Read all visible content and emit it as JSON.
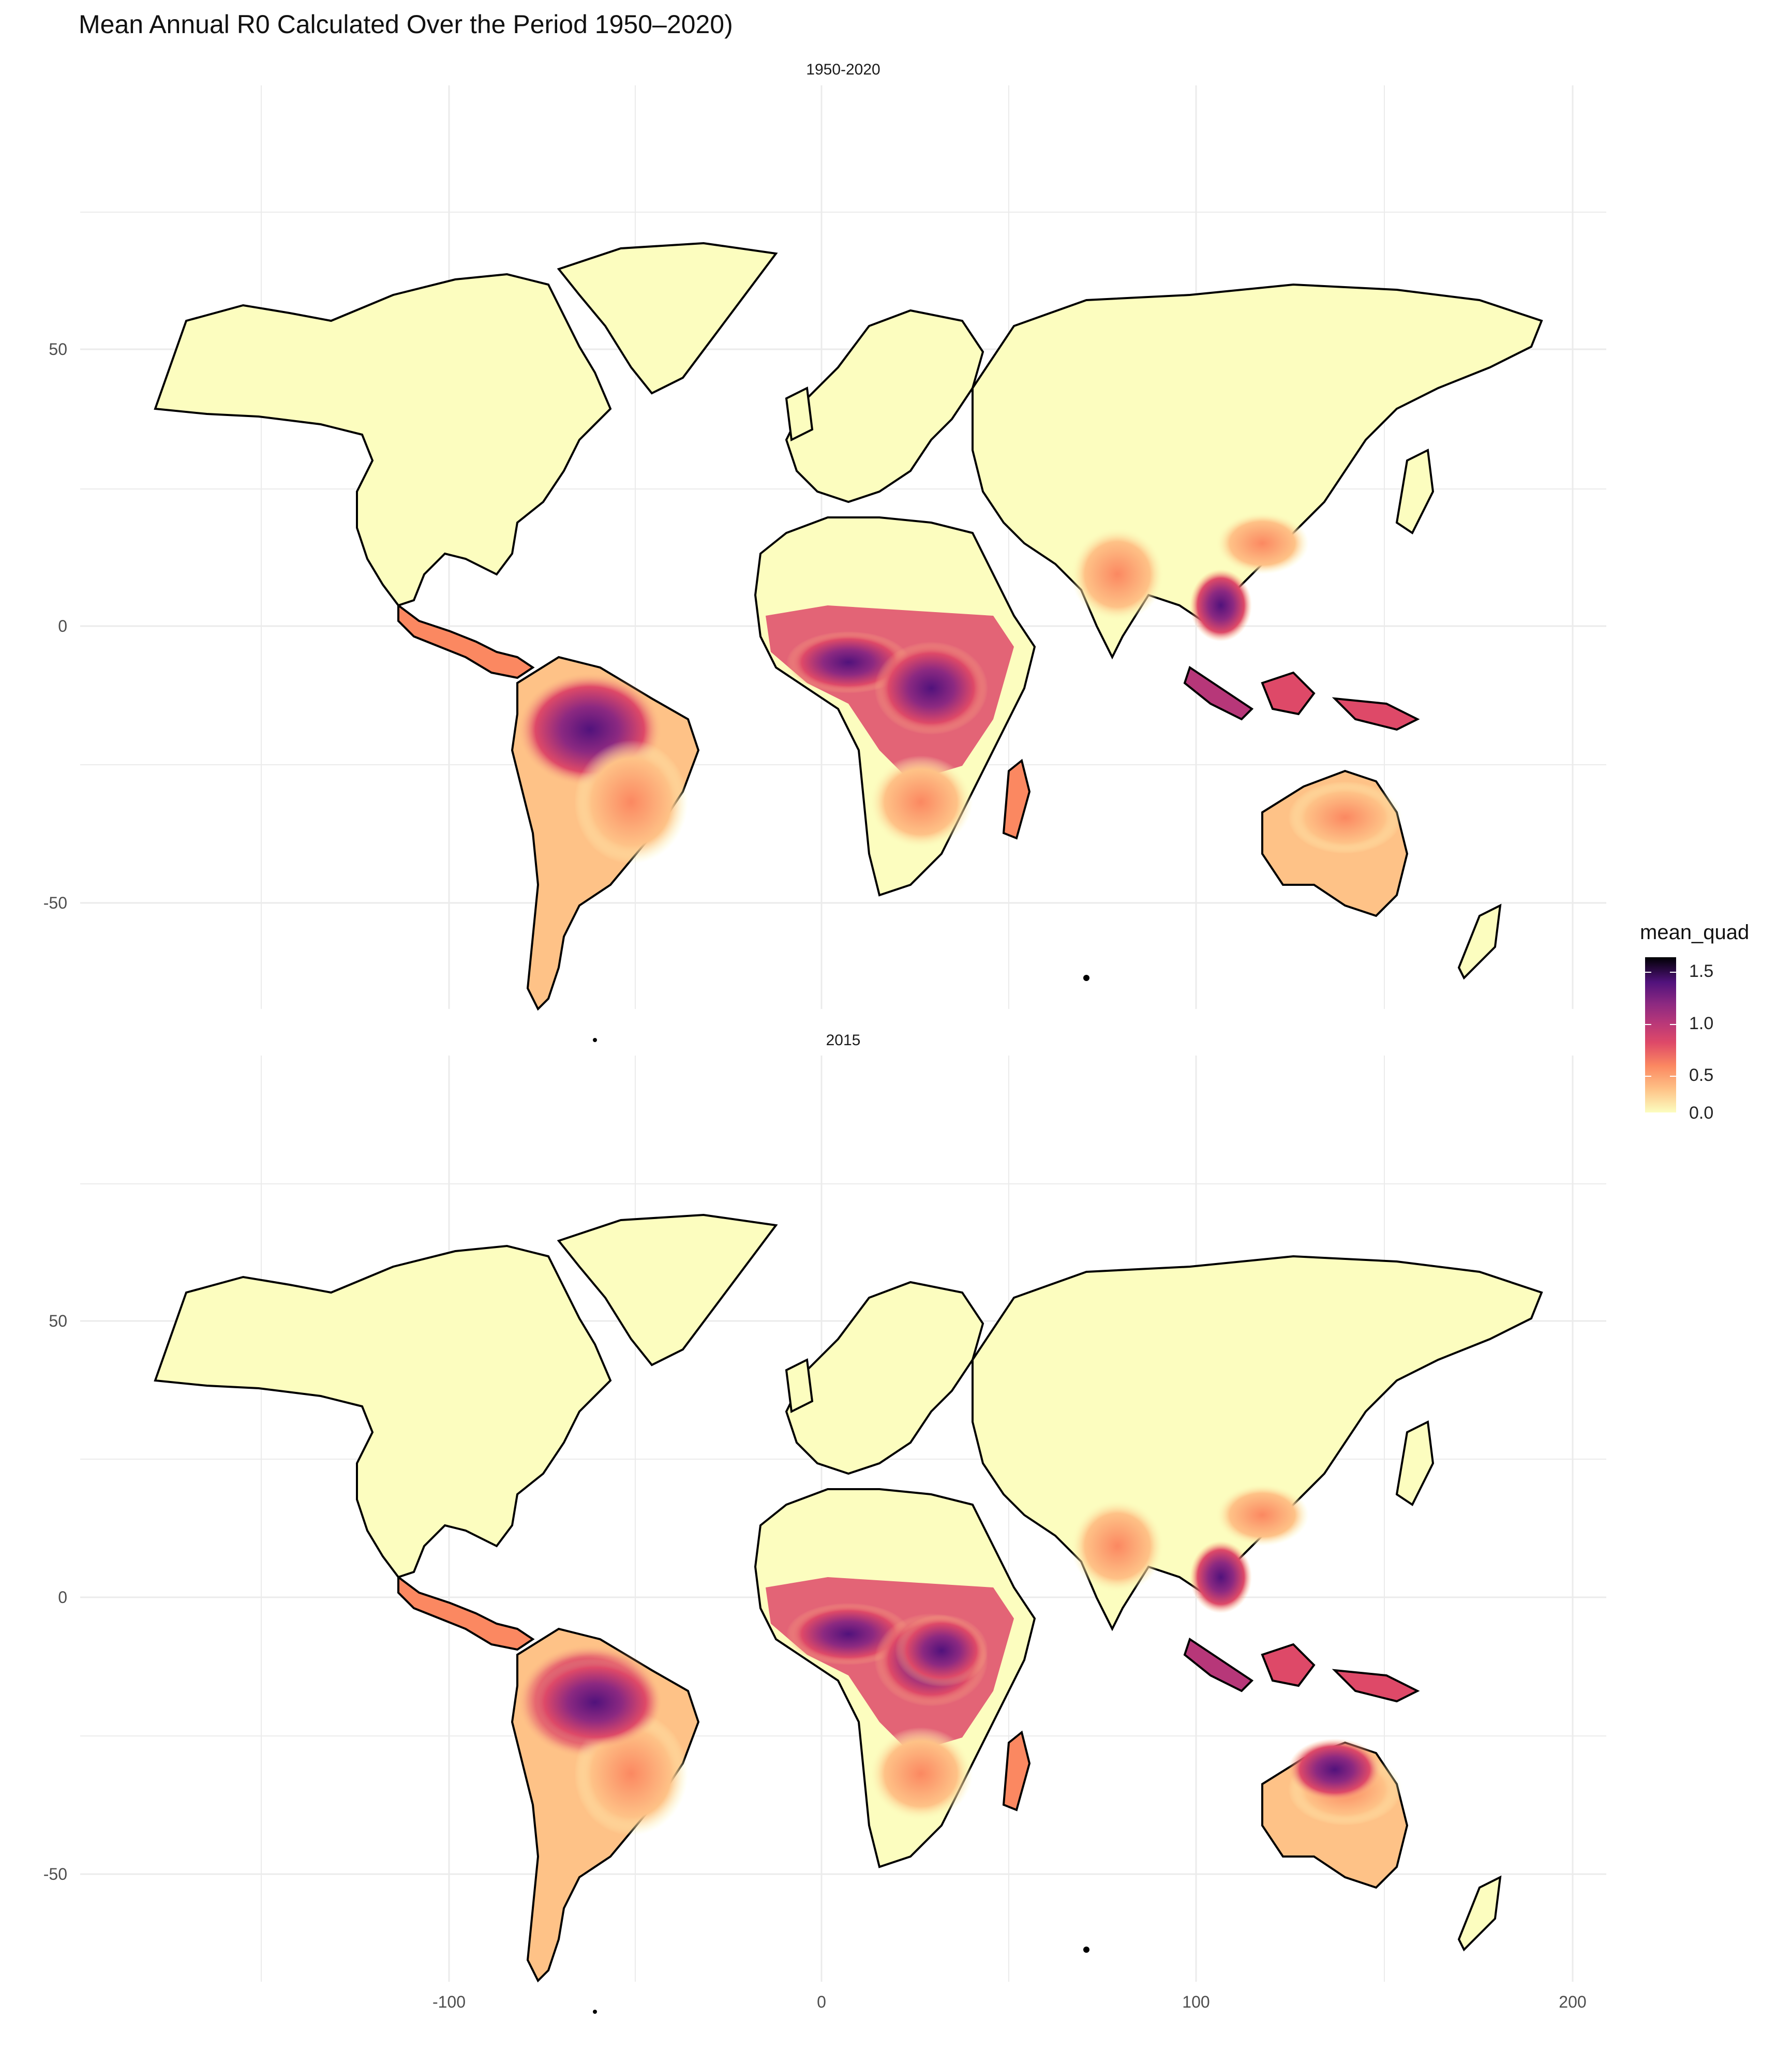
{
  "title": "Mean Annual R0 Calculated Over the Period 1950–2020)",
  "panels": [
    {
      "label": "1950-2020"
    },
    {
      "label": "2015"
    }
  ],
  "axes": {
    "y_ticks": [
      "50",
      "0",
      "-50"
    ],
    "x_ticks": [
      "-100",
      "0",
      "100",
      "200"
    ],
    "xlim": [
      -185,
      210
    ],
    "ylim": [
      -65,
      95
    ]
  },
  "legend": {
    "title": "mean_quad",
    "labels": [
      "1.5",
      "1.0",
      "0.5",
      "0.0"
    ],
    "palette": "magma",
    "range": [
      0,
      1.75
    ]
  },
  "colors": {
    "land_low": "#fcfdbf",
    "mid": "#fb8861",
    "high": "#8c2981",
    "max": "#000004",
    "border": "#000000",
    "grid": "#ebebeb"
  }
}
